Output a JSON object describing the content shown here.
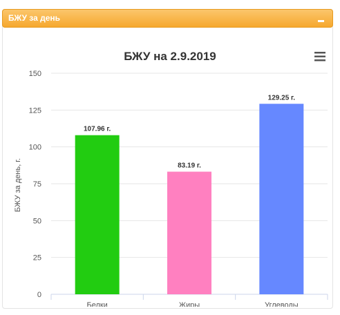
{
  "widget": {
    "title": "БЖУ за день",
    "collapse_icon": "minus-icon",
    "menu_icon": "hamburger-menu-icon"
  },
  "colors": {
    "header_bg": "#f6a82e",
    "header_border": "#e79a1f"
  },
  "chart_data": {
    "type": "bar",
    "title": "БЖУ на 2.9.2019",
    "xlabel": "",
    "ylabel": "БЖУ за день, г.",
    "ylim": [
      0,
      150
    ],
    "yticks": [
      0,
      25,
      50,
      75,
      100,
      125,
      150
    ],
    "grid": true,
    "categories": [
      "Белки",
      "Жиры",
      "Углеводы"
    ],
    "values": [
      107.96,
      83.19,
      129.25
    ],
    "data_labels": [
      "107.96 г.",
      "83.19 г.",
      "129.25 г."
    ],
    "colors": [
      "#22cc11",
      "#ff80c0",
      "#6688ff"
    ]
  }
}
